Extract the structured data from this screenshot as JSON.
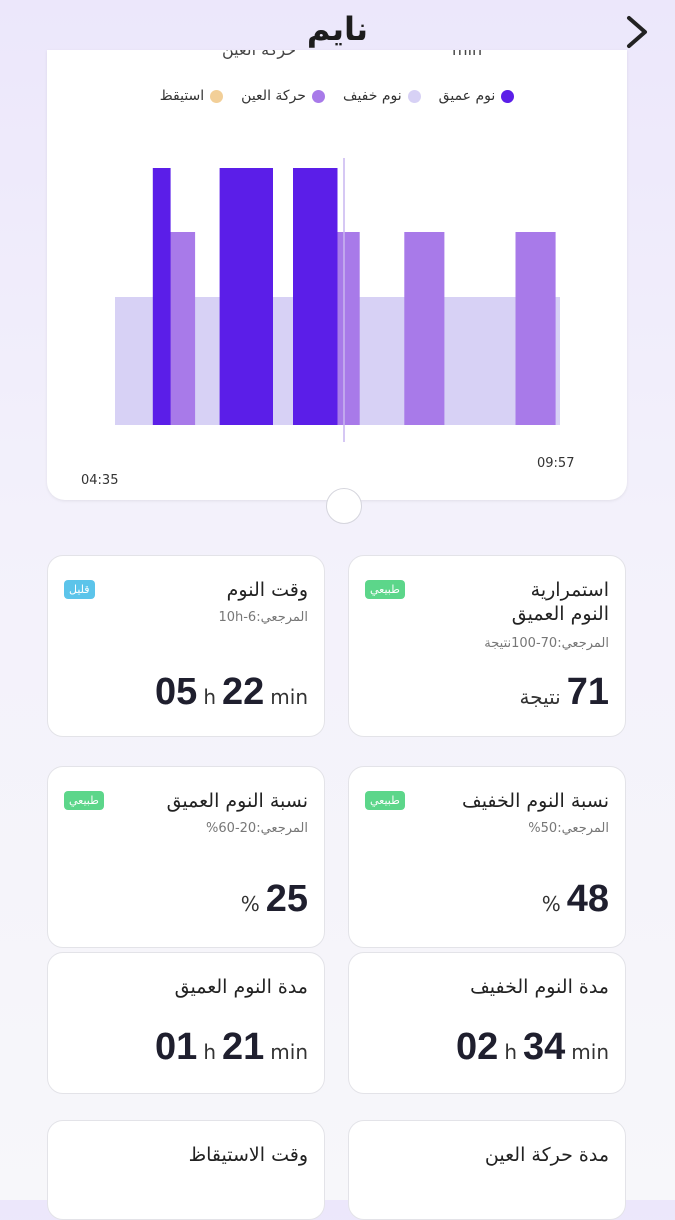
{
  "header": {
    "title": "نايم",
    "back_icon": "chevron-right-icon"
  },
  "chart": {
    "clipped_labels": [
      "حركة العين",
      "min"
    ],
    "legend": [
      {
        "label": "نوم عميق",
        "color": "#5b1ee8"
      },
      {
        "label": "نوم خفيف",
        "color": "#d7d1f5"
      },
      {
        "label": "حركة العين",
        "color": "#a87ae9"
      },
      {
        "label": "استيقظ",
        "color": "#f2cf98"
      }
    ],
    "start_time": "04:35",
    "end_time": "09:57"
  },
  "chart_data": {
    "type": "bar",
    "x_range": [
      "04:35",
      "09:57"
    ],
    "series": [
      {
        "name": "نوم خفيف",
        "color": "#d7d1f5",
        "level": 1,
        "segments": [
          [
            0,
            1
          ]
        ]
      },
      {
        "name": "حركة العين",
        "color": "#a87ae9",
        "level": 2,
        "segments": [
          [
            0.12,
            0.18
          ],
          [
            0.48,
            0.55
          ],
          [
            0.65,
            0.74
          ],
          [
            0.9,
            0.99
          ]
        ]
      },
      {
        "name": "نوم عميق",
        "color": "#5b1ee8",
        "level": 3,
        "segments": [
          [
            0.085,
            0.125
          ],
          [
            0.235,
            0.355
          ],
          [
            0.4,
            0.5
          ]
        ]
      }
    ]
  },
  "cards": [
    {
      "title": "وقت النوم",
      "ref": "المرجعي:6-10h",
      "badge": "قليل",
      "badge_color": "blue",
      "value": "05 h 22 min"
    },
    {
      "title": "استمرارية\nالنوم العميق",
      "ref": "المرجعي:70-100نتيجة",
      "badge": "طبيعي",
      "badge_color": "green",
      "value_num": "71",
      "value_unit": "نتيجة"
    },
    {
      "title": "نسبة النوم العميق",
      "ref": "المرجعي:20-60%",
      "badge": "طبيعي",
      "badge_color": "green",
      "value": "25 %"
    },
    {
      "title": "نسبة النوم الخفيف",
      "ref": "المرجعي:50%",
      "badge": "طبيعي",
      "badge_color": "green",
      "value": "48 %"
    },
    {
      "title": "مدة النوم العميق",
      "value": "01 h 21 min"
    },
    {
      "title": "مدة النوم الخفيف",
      "value": "02 h 34 min"
    },
    {
      "title": "وقت الاستيقاظ"
    },
    {
      "title": "مدة حركة العين"
    }
  ]
}
